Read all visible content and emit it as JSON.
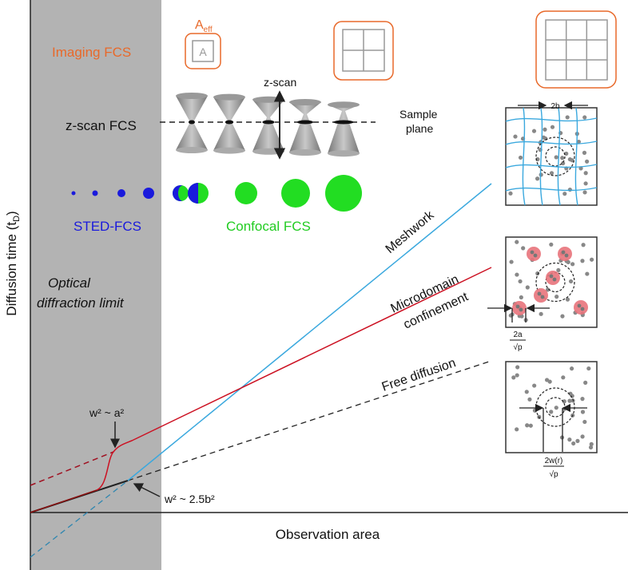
{
  "axes": {
    "y_label": "Diffusion time (t",
    "y_label_sub": "D",
    "y_label_end": ")",
    "x_label": "Observation area"
  },
  "methods": {
    "imaging": "Imaging FCS",
    "aeff": "A",
    "aeff_sub": "eff",
    "pixel_letter": "A",
    "zscan": "z-scan FCS",
    "zscan_arrow": "z-scan",
    "sample_plane_1": "Sample",
    "sample_plane_2": "plane",
    "sted": "STED-FCS",
    "confocal": "Confocal FCS"
  },
  "limit": {
    "line1": "Optical",
    "line2": "diffraction limit"
  },
  "lines": {
    "meshwork": "Meshwork",
    "micro1": "Microdomain",
    "micro2": "confinement",
    "free": "Free diffusion"
  },
  "annotations": {
    "a2": "w² ~ a²",
    "b2": "w² ~ 2.5b²"
  },
  "schematics": {
    "mesh_label": "2b",
    "domain_num": "2a",
    "domain_den": "√p",
    "free_num": "2w(r)",
    "free_den": "√p"
  },
  "colors": {
    "orange": "#e8692a",
    "blue": "#1a1adc",
    "green": "#22dd22",
    "mesh": "#3aa8de",
    "red": "#cc1122",
    "gray_band": "#b3b3b3"
  }
}
